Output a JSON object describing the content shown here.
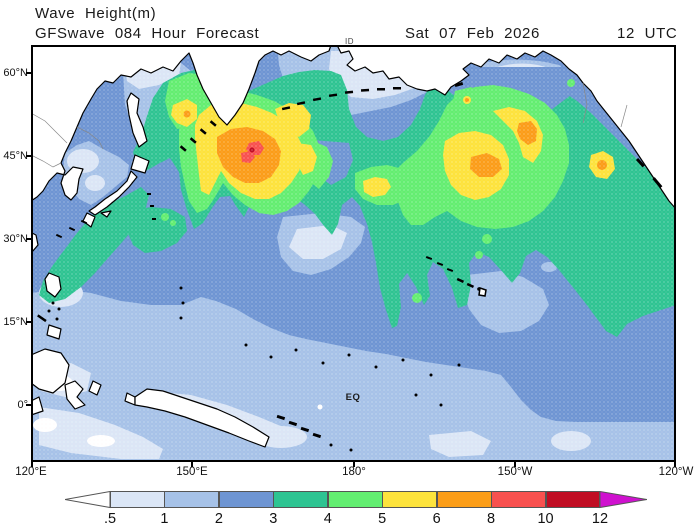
{
  "header": {
    "title": "Wave Height(m)",
    "subtitle": "GFSwave 084 Hour Forecast",
    "valid_date": "Sat 07 Feb 2026",
    "valid_time": "12 UTC"
  },
  "map": {
    "lat_ticks": [
      "60°N",
      "45°N",
      "30°N",
      "15°N",
      "0°"
    ],
    "lon_ticks": [
      "120°E",
      "150°E",
      "180°",
      "150°W",
      "120°W"
    ],
    "equator_label": "EQ",
    "top_edge_label": "ID"
  },
  "colorbar": {
    "units": "m",
    "labels": [
      ".5",
      "1",
      "2",
      "3",
      "4",
      "5",
      "6",
      "8",
      "10",
      "12"
    ],
    "colors": [
      "#dbe6f6",
      "#a6c2e8",
      "#6e95d3",
      "#2ec492",
      "#63ee71",
      "#fde33c",
      "#fb9d18",
      "#f8514f",
      "#c00d23"
    ],
    "underflow": "#ffffff",
    "overflow": "#cf11cf"
  },
  "chart_data": {
    "type": "heatmap",
    "title": "Wave Height(m)",
    "subtitle": "GFSwave 084 Hour Forecast",
    "valid": "Sat 07 Feb 2026 12 UTC",
    "units": "m",
    "projection": "Pacific basin, lon 120°E–120°W, lat ≈65°N–10°S",
    "x_axis": {
      "label": "longitude",
      "ticks": [
        "120°E",
        "150°E",
        "180°",
        "150°W",
        "120°W"
      ]
    },
    "y_axis": {
      "label": "latitude",
      "ticks": [
        "60°N",
        "45°N",
        "30°N",
        "15°N",
        "0°"
      ]
    },
    "scale_levels_m": [
      0.5,
      1,
      2,
      3,
      4,
      5,
      6,
      8,
      10,
      12
    ],
    "legend_position": "bottom",
    "features": [
      {
        "region": "NW Pacific storm SE of Kamchatka",
        "center": "≈45°N 162°E",
        "peak_wave_height_m": "8–10"
      },
      {
        "region": "Sea of Okhotsk swell patch",
        "center": "≈52°N 150°E",
        "peak_wave_height_m": "5–6"
      },
      {
        "region": "Small central Pacific low",
        "center": "≈42°N 178°W",
        "peak_wave_height_m": "5–6"
      },
      {
        "region": "NE Pacific / Gulf of Alaska storm",
        "center": "≈45°N 165°W",
        "peak_wave_height_m": "6–8"
      },
      {
        "region": "Swell off North American west coast",
        "center": "≈42°N 132°W",
        "peak_wave_height_m": "6–8"
      },
      {
        "region": "East China Sea / Kuroshio swell band",
        "center": "≈28°N 128°E",
        "peak_wave_height_m": "3–4"
      },
      {
        "region": "Equatorial band",
        "center": "≈0–15°N basinwide",
        "peak_wave_height_m": "1–2"
      },
      {
        "region": "Indonesian seas / sheltered coasts",
        "center": "≈0° 130°E",
        "peak_wave_height_m": "<0.5–1"
      }
    ]
  }
}
